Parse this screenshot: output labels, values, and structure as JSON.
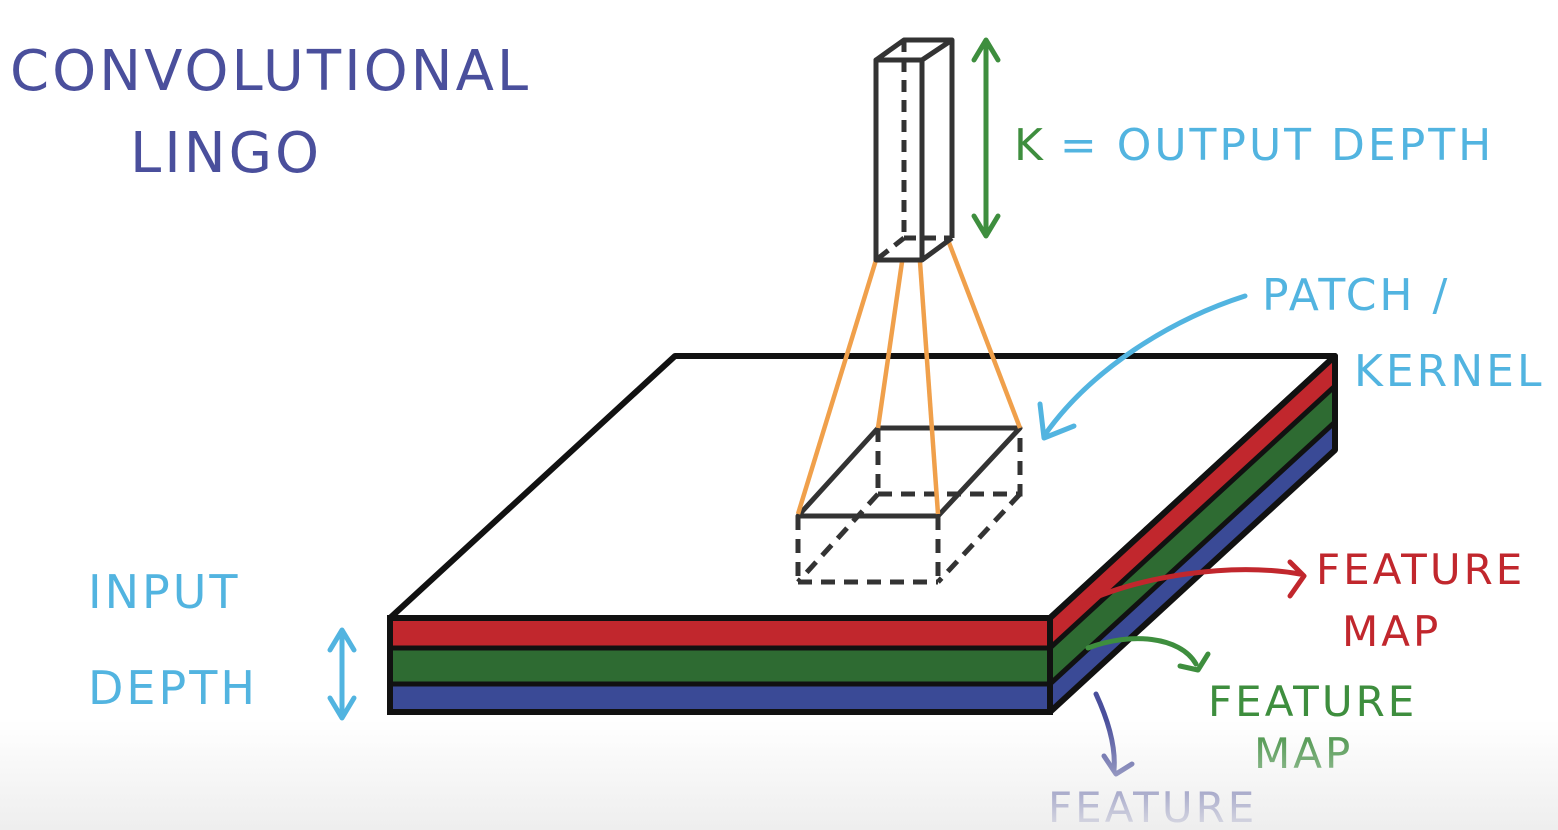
{
  "title": {
    "line1": "CONVOLUTIONAL",
    "line2": "LINGO"
  },
  "labels": {
    "output_depth": "K = OUTPUT DEPTH",
    "patch_line1": "PATCH /",
    "patch_line2": "KERNEL",
    "input_line1": "INPUT",
    "input_line2": "DEPTH",
    "feature_red_line1": "FEATURE",
    "feature_red_line2": "MAP",
    "feature_green_line1": "FEATURE",
    "feature_green_line2": "MAP",
    "feature_blue_line1": "FEATURE"
  },
  "colors": {
    "title": "#4a4f9c",
    "cyan": "#52b4e0",
    "green_label": "#3e8e3e",
    "layer_red": "#c1272d",
    "layer_green": "#2e6b32",
    "layer_blue": "#3a4a96",
    "orange": "#f0a04b",
    "outline": "#111111"
  }
}
